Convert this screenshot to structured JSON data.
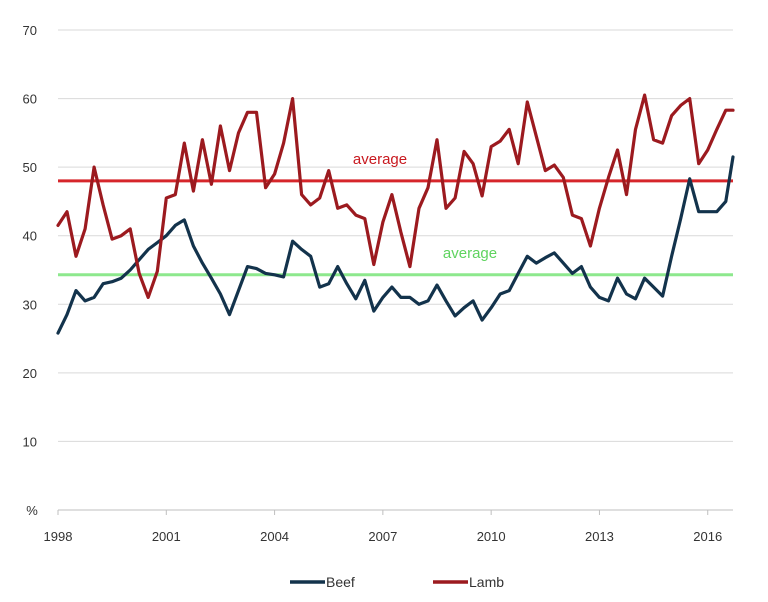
{
  "chart_data": {
    "type": "line",
    "title": "",
    "xlabel": "",
    "ylabel": "%",
    "ylim": [
      0,
      70
    ],
    "xlim": [
      1998.0,
      2016.7
    ],
    "yticks": [
      "",
      "10",
      "20",
      "30",
      "40",
      "50",
      "60",
      "70"
    ],
    "xticks": [
      {
        "x": 1998,
        "label": "1998"
      },
      {
        "x": 2001,
        "label": "2001"
      },
      {
        "x": 2004,
        "label": "2004"
      },
      {
        "x": 2007,
        "label": "2007"
      },
      {
        "x": 2010,
        "label": "2010"
      },
      {
        "x": 2013,
        "label": "2013"
      },
      {
        "x": 2016,
        "label": "2016"
      }
    ],
    "grid": true,
    "legend_position": "bottom",
    "series": [
      {
        "name": "Beef",
        "color": "#13334c",
        "x": [
          1998.0,
          1998.25,
          1998.5,
          1998.75,
          1999.0,
          1999.25,
          1999.5,
          1999.75,
          2000.0,
          2000.25,
          2000.5,
          2000.75,
          2001.0,
          2001.25,
          2001.5,
          2001.75,
          2002.0,
          2002.25,
          2002.5,
          2002.75,
          2003.0,
          2003.25,
          2003.5,
          2003.75,
          2004.0,
          2004.25,
          2004.5,
          2004.75,
          2005.0,
          2005.25,
          2005.5,
          2005.75,
          2006.0,
          2006.25,
          2006.5,
          2006.75,
          2007.0,
          2007.25,
          2007.5,
          2007.75,
          2008.0,
          2008.25,
          2008.5,
          2008.75,
          2009.0,
          2009.25,
          2009.5,
          2009.75,
          2010.0,
          2010.25,
          2010.5,
          2010.75,
          2011.0,
          2011.25,
          2011.5,
          2011.75,
          2012.0,
          2012.25,
          2012.5,
          2012.75,
          2013.0,
          2013.25,
          2013.5,
          2013.75,
          2014.0,
          2014.25,
          2014.5,
          2014.75,
          2015.0,
          2015.25,
          2015.5,
          2015.75,
          2016.0,
          2016.25,
          2016.5,
          2016.7
        ],
        "values": [
          25.8,
          28.5,
          32,
          30.5,
          31,
          33,
          33.3,
          33.8,
          35,
          36.5,
          38,
          39,
          40,
          41.5,
          42.3,
          38.5,
          36,
          33.8,
          31.5,
          28.5,
          32,
          35.5,
          35.2,
          34.5,
          34.3,
          34,
          39.2,
          38,
          37,
          32.5,
          33,
          35.5,
          33,
          30.8,
          33.5,
          29,
          31,
          32.5,
          31,
          31,
          30,
          30.5,
          32.8,
          30.5,
          28.3,
          29.5,
          30.5,
          27.7,
          29.5,
          31.5,
          32,
          34.5,
          37,
          36,
          36.8,
          37.5,
          36,
          34.5,
          35.5,
          32.5,
          31,
          30.5,
          33.8,
          31.5,
          30.8,
          33.8,
          32.5,
          31.2,
          37,
          42.5,
          48.3,
          43.5,
          43.5,
          43.5,
          45,
          51.5
        ]
      },
      {
        "name": "Lamb",
        "color": "#9c1a1f",
        "x": [
          1998.0,
          1998.25,
          1998.5,
          1998.75,
          1999.0,
          1999.25,
          1999.5,
          1999.75,
          2000.0,
          2000.25,
          2000.5,
          2000.75,
          2001.0,
          2001.25,
          2001.5,
          2001.75,
          2002.0,
          2002.25,
          2002.5,
          2002.75,
          2003.0,
          2003.25,
          2003.5,
          2003.75,
          2004.0,
          2004.25,
          2004.5,
          2004.75,
          2005.0,
          2005.25,
          2005.5,
          2005.75,
          2006.0,
          2006.25,
          2006.5,
          2006.75,
          2007.0,
          2007.25,
          2007.5,
          2007.75,
          2008.0,
          2008.25,
          2008.5,
          2008.75,
          2009.0,
          2009.25,
          2009.5,
          2009.75,
          2010.0,
          2010.25,
          2010.5,
          2010.75,
          2011.0,
          2011.25,
          2011.5,
          2011.75,
          2012.0,
          2012.25,
          2012.5,
          2012.75,
          2013.0,
          2013.25,
          2013.5,
          2013.75,
          2014.0,
          2014.25,
          2014.5,
          2014.75,
          2015.0,
          2015.25,
          2015.5,
          2015.75,
          2016.0,
          2016.25,
          2016.5,
          2016.7
        ],
        "values": [
          41.5,
          43.5,
          37,
          41,
          50,
          44.5,
          39.5,
          40,
          41,
          34.5,
          31,
          34.8,
          45.5,
          46,
          53.5,
          46.5,
          54,
          47.5,
          56,
          49.5,
          55,
          58,
          58,
          47,
          49,
          53.5,
          60,
          46,
          44.5,
          45.5,
          49.5,
          44,
          44.5,
          43,
          42.5,
          35.8,
          42,
          46,
          40.5,
          35.5,
          44,
          47,
          54,
          44,
          45.5,
          52.3,
          50.5,
          45.8,
          53,
          53.8,
          55.5,
          50.5,
          59.5,
          54.5,
          49.5,
          50.3,
          48.5,
          43,
          42.5,
          38.5,
          44,
          48.5,
          52.5,
          46,
          55.5,
          60.5,
          54,
          53.5,
          57.5,
          59,
          60,
          50.5,
          52.5,
          55.5,
          58.3,
          58.3
        ]
      }
    ],
    "reference_lines": [
      {
        "label": "average",
        "value": 48,
        "color": "#d6262b",
        "text_color": "#c8191f"
      },
      {
        "label": "average",
        "value": 34.3,
        "color": "#8de88d",
        "text_color": "#5fd35f"
      }
    ]
  }
}
